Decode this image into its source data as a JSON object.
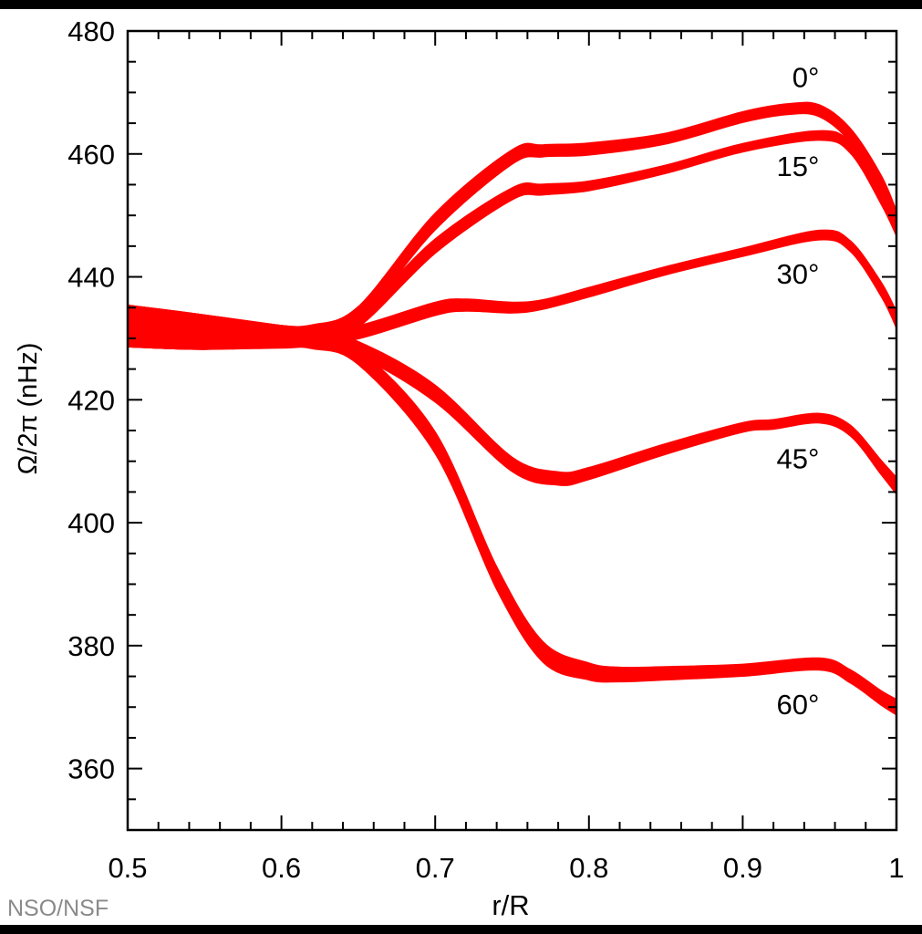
{
  "chart_data": {
    "type": "area",
    "title": "",
    "xlabel": "r/R",
    "ylabel": "Ω/2π (nHz)",
    "xlim": [
      0.5,
      1.0
    ],
    "ylim": [
      350,
      480
    ],
    "xticks": [
      0.5,
      0.6,
      0.7,
      0.8,
      0.9,
      1.0
    ],
    "xtick_labels": [
      "0.5",
      "0.6",
      "0.7",
      "0.8",
      "0.9",
      "1"
    ],
    "yticks": [
      360,
      380,
      400,
      420,
      440,
      460,
      480
    ],
    "ytick_labels": [
      "360",
      "380",
      "400",
      "420",
      "440",
      "460",
      "480"
    ],
    "grid": false,
    "legend": "none",
    "color": "#ff0000",
    "series": [
      {
        "name": "0°",
        "x": [
          0.5,
          0.55,
          0.6,
          0.62,
          0.65,
          0.7,
          0.75,
          0.77,
          0.8,
          0.85,
          0.9,
          0.93,
          0.95,
          0.97,
          0.99,
          1.0
        ],
        "y": [
          432,
          431,
          430.5,
          431,
          434,
          449,
          459.5,
          460.5,
          460.8,
          462.5,
          466,
          467.3,
          467,
          463,
          455,
          449
        ],
        "halfwidth": [
          3.4,
          2.8,
          1.6,
          1.2,
          1.2,
          1.4,
          1.2,
          1.0,
          1.0,
          0.9,
          0.9,
          0.9,
          1.0,
          1.2,
          1.6,
          1.8
        ]
      },
      {
        "name": "15°",
        "x": [
          0.5,
          0.55,
          0.6,
          0.62,
          0.65,
          0.7,
          0.75,
          0.77,
          0.8,
          0.85,
          0.9,
          0.95,
          0.97,
          0.99,
          1.0
        ],
        "y": [
          432,
          431,
          430.5,
          431,
          433,
          445,
          453.5,
          454.2,
          454.8,
          457.5,
          461,
          463,
          461,
          453,
          448
        ],
        "halfwidth": [
          3.4,
          2.8,
          1.6,
          1.2,
          1.2,
          1.2,
          1.0,
          0.9,
          0.8,
          0.7,
          0.7,
          0.8,
          0.9,
          1.2,
          1.4
        ]
      },
      {
        "name": "30°",
        "x": [
          0.5,
          0.55,
          0.6,
          0.62,
          0.65,
          0.7,
          0.72,
          0.75,
          0.77,
          0.8,
          0.85,
          0.9,
          0.95,
          0.97,
          0.99,
          1.0
        ],
        "y": [
          432,
          431,
          430.5,
          430.5,
          431,
          434.8,
          435.4,
          435,
          435.5,
          437.5,
          441,
          444,
          446.8,
          445,
          438,
          433
        ],
        "halfwidth": [
          3.4,
          2.8,
          1.6,
          1.2,
          1.1,
          1.1,
          1.0,
          0.9,
          0.8,
          0.8,
          0.7,
          0.7,
          0.8,
          0.9,
          1.2,
          1.4
        ]
      },
      {
        "name": "45°",
        "x": [
          0.5,
          0.55,
          0.6,
          0.62,
          0.65,
          0.7,
          0.75,
          0.78,
          0.8,
          0.85,
          0.9,
          0.92,
          0.95,
          0.97,
          0.99,
          1.0
        ],
        "y": [
          432,
          431,
          430.5,
          430,
          428.3,
          421,
          409.5,
          407.2,
          408,
          412,
          415.5,
          416,
          417,
          415,
          409,
          406
        ],
        "halfwidth": [
          3.4,
          2.8,
          1.6,
          1.2,
          1.2,
          1.4,
          1.2,
          1.1,
          1.0,
          0.9,
          0.8,
          0.8,
          0.8,
          0.9,
          1.2,
          1.4
        ]
      },
      {
        "name": "60°",
        "x": [
          0.5,
          0.55,
          0.6,
          0.62,
          0.65,
          0.7,
          0.74,
          0.77,
          0.8,
          0.82,
          0.85,
          0.9,
          0.95,
          0.97,
          0.99,
          1.0
        ],
        "y": [
          432,
          431,
          430,
          429.5,
          427,
          413,
          391,
          379,
          375.8,
          375.3,
          375.5,
          376,
          377,
          375,
          371.5,
          370
        ],
        "halfwidth": [
          3.4,
          2.8,
          1.6,
          1.2,
          1.3,
          1.8,
          1.9,
          1.7,
          1.4,
          1.2,
          1.1,
          1.0,
          1.0,
          1.1,
          1.2,
          1.3
        ]
      }
    ],
    "annotations": [
      {
        "text": "0°",
        "x": 0.935,
        "y": 472.5
      },
      {
        "text": "15°",
        "x": 0.935,
        "y": 458
      },
      {
        "text": "30°",
        "x": 0.935,
        "y": 440.5
      },
      {
        "text": "45°",
        "x": 0.935,
        "y": 410.5
      },
      {
        "text": "60°",
        "x": 0.935,
        "y": 370.5
      }
    ]
  },
  "credit": "NSO/NSF"
}
